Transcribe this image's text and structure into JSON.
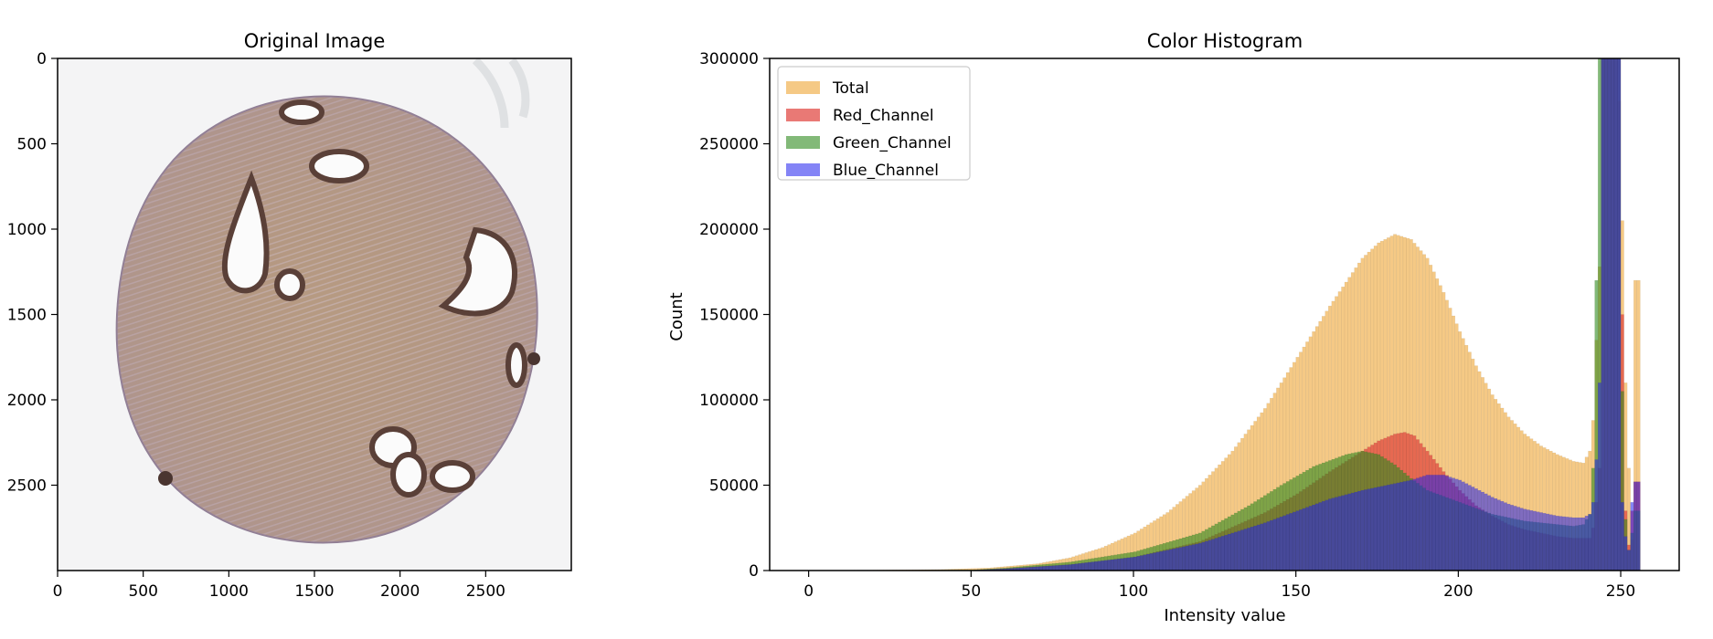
{
  "chart_data": [
    {
      "type": "image",
      "title": "Original Image",
      "xlabel": "",
      "ylabel": "",
      "xlim": [
        0,
        3000
      ],
      "ylim": [
        3000,
        0
      ],
      "xticks": [
        0,
        500,
        1000,
        1500,
        2000,
        2500
      ],
      "yticks": [
        0,
        500,
        1000,
        1500,
        2000,
        2500
      ],
      "image_description": "tissue-core"
    },
    {
      "type": "histogram",
      "title": "Color Histogram",
      "xlabel": "Intensity value",
      "ylabel": "Count",
      "xlim": [
        -12,
        268
      ],
      "ylim": [
        0,
        300000
      ],
      "xticks": [
        0,
        50,
        100,
        150,
        200,
        250
      ],
      "yticks": [
        0,
        50000,
        100000,
        150000,
        200000,
        250000,
        300000
      ],
      "legend_position": "top-left",
      "series": [
        {
          "name": "Total",
          "color": "#f1b75c",
          "fill_opacity": 0.75,
          "bins": {
            "start": 0,
            "width": 1,
            "end": 255
          },
          "profile": [
            [
              0,
              0
            ],
            [
              40,
              600
            ],
            [
              55,
              1500
            ],
            [
              70,
              4000
            ],
            [
              80,
              7500
            ],
            [
              90,
              13500
            ],
            [
              100,
              22000
            ],
            [
              110,
              34000
            ],
            [
              120,
              50000
            ],
            [
              130,
              70000
            ],
            [
              140,
              95000
            ],
            [
              150,
              125000
            ],
            [
              160,
              155000
            ],
            [
              170,
              183000
            ],
            [
              175,
              192000
            ],
            [
              180,
              197000
            ],
            [
              185,
              194000
            ],
            [
              190,
              183000
            ],
            [
              195,
              163000
            ],
            [
              200,
              140000
            ],
            [
              205,
              120000
            ],
            [
              210,
              103000
            ],
            [
              215,
              90000
            ],
            [
              220,
              80000
            ],
            [
              225,
              73000
            ],
            [
              230,
              68000
            ],
            [
              235,
              64000
            ],
            [
              238,
              63000
            ],
            [
              240,
              70000
            ],
            [
              241,
              88000
            ],
            [
              242,
              135000
            ],
            [
              243,
              178000
            ],
            [
              244,
              300000
            ],
            [
              248,
              300000
            ],
            [
              249,
              275000
            ],
            [
              250,
              205000
            ],
            [
              251,
              110000
            ],
            [
              252,
              60000
            ],
            [
              253,
              18000
            ],
            [
              254,
              170000
            ]
          ]
        },
        {
          "name": "Red_Channel",
          "color": "#e0403a",
          "fill_opacity": 0.7,
          "bins": {
            "start": 0,
            "width": 1,
            "end": 255
          },
          "profile": [
            [
              0,
              0
            ],
            [
              50,
              300
            ],
            [
              60,
              1200
            ],
            [
              80,
              3500
            ],
            [
              100,
              8000
            ],
            [
              120,
              17000
            ],
            [
              140,
              34000
            ],
            [
              150,
              45000
            ],
            [
              160,
              58000
            ],
            [
              170,
              70000
            ],
            [
              175,
              76000
            ],
            [
              180,
              80000
            ],
            [
              183,
              81000
            ],
            [
              186,
              79000
            ],
            [
              190,
              70000
            ],
            [
              195,
              58000
            ],
            [
              200,
              47000
            ],
            [
              205,
              38000
            ],
            [
              210,
              32000
            ],
            [
              215,
              27000
            ],
            [
              220,
              24000
            ],
            [
              225,
              22000
            ],
            [
              230,
              20000
            ],
            [
              235,
              19000
            ],
            [
              240,
              19000
            ],
            [
              241,
              25000
            ],
            [
              242,
              40000
            ],
            [
              243,
              60000
            ],
            [
              244,
              300000
            ],
            [
              249,
              300000
            ],
            [
              250,
              150000
            ],
            [
              251,
              35000
            ],
            [
              252,
              15000
            ],
            [
              253,
              35000
            ],
            [
              254,
              52000
            ]
          ]
        },
        {
          "name": "Green_Channel",
          "color": "#2e8b1e",
          "fill_opacity": 0.6,
          "bins": {
            "start": 0,
            "width": 1,
            "end": 255
          },
          "profile": [
            [
              0,
              0
            ],
            [
              50,
              400
            ],
            [
              60,
              1500
            ],
            [
              80,
              5000
            ],
            [
              100,
              11000
            ],
            [
              120,
              22000
            ],
            [
              135,
              38000
            ],
            [
              145,
              50000
            ],
            [
              155,
              61000
            ],
            [
              165,
              68000
            ],
            [
              170,
              70000
            ],
            [
              175,
              68000
            ],
            [
              180,
              62000
            ],
            [
              185,
              54000
            ],
            [
              190,
              47000
            ],
            [
              200,
              40000
            ],
            [
              210,
              33000
            ],
            [
              220,
              29000
            ],
            [
              230,
              27000
            ],
            [
              235,
              26000
            ],
            [
              238,
              27000
            ],
            [
              240,
              33000
            ],
            [
              241,
              60000
            ],
            [
              242,
              170000
            ],
            [
              243,
              300000
            ],
            [
              249,
              300000
            ],
            [
              250,
              105000
            ],
            [
              251,
              30000
            ],
            [
              252,
              12000
            ],
            [
              253,
              22000
            ],
            [
              254,
              35000
            ]
          ]
        },
        {
          "name": "Blue_Channel",
          "color": "#1f1fef",
          "fill_opacity": 0.55,
          "bins": {
            "start": 0,
            "width": 1,
            "end": 255
          },
          "profile": [
            [
              0,
              0
            ],
            [
              50,
              250
            ],
            [
              60,
              1000
            ],
            [
              80,
              3500
            ],
            [
              100,
              8000
            ],
            [
              120,
              16000
            ],
            [
              140,
              28000
            ],
            [
              150,
              35000
            ],
            [
              160,
              42000
            ],
            [
              170,
              47000
            ],
            [
              180,
              51000
            ],
            [
              185,
              53000
            ],
            [
              190,
              56000
            ],
            [
              195,
              56000
            ],
            [
              200,
              53000
            ],
            [
              205,
              48000
            ],
            [
              210,
              43000
            ],
            [
              215,
              39000
            ],
            [
              220,
              36000
            ],
            [
              225,
              34000
            ],
            [
              230,
              32000
            ],
            [
              235,
              31000
            ],
            [
              238,
              31000
            ],
            [
              240,
              33000
            ],
            [
              241,
              40000
            ],
            [
              242,
              65000
            ],
            [
              243,
              110000
            ],
            [
              244,
              300000
            ],
            [
              249,
              300000
            ],
            [
              250,
              40000
            ],
            [
              251,
              20000
            ],
            [
              252,
              12000
            ],
            [
              253,
              40000
            ],
            [
              254,
              52000
            ]
          ]
        }
      ]
    }
  ]
}
